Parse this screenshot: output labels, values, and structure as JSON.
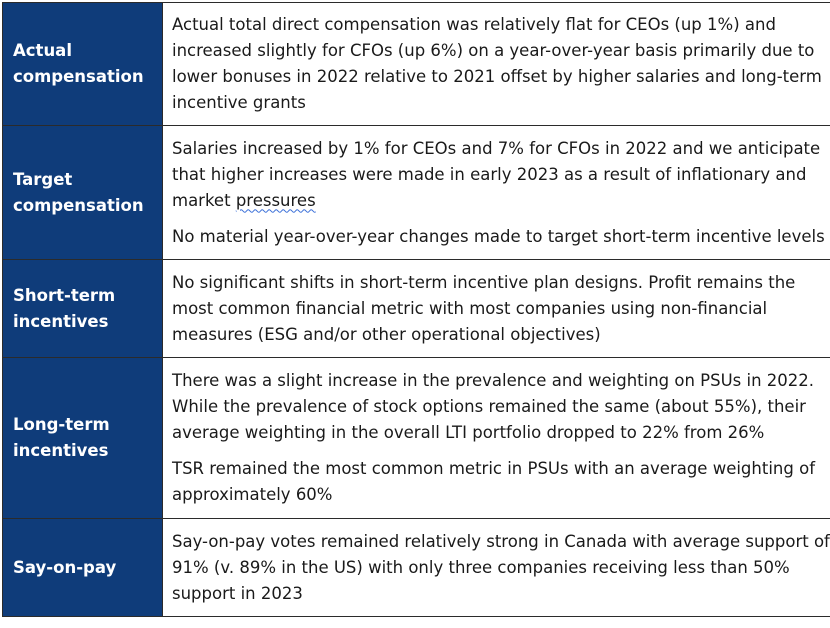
{
  "rows": [
    {
      "label": "Actual compensation",
      "paragraphs": [
        "Actual total direct compensation was relatively flat for CEOs (up 1%) and increased slightly for CFOs (up 6%) on a year-over-year basis primarily due to lower bonuses in 2022 relative to 2021 offset by higher salaries and long-term incentive grants"
      ]
    },
    {
      "label": "Target compensation",
      "paragraphs": [
        "Salaries increased by 1% for CEOs and 7% for CFOs in 2022 and we anticipate that higher increases were made in early 2023 as a result of inflationary and market",
        "No material year-over-year changes made to target short-term incentive levels"
      ],
      "flagged_word": "pressures"
    },
    {
      "label": "Short-term incentives",
      "paragraphs": [
        "No significant shifts in short-term incentive plan designs. Profit remains the most common financial metric with most companies using non-financial measures (ESG and/or other operational objectives)"
      ]
    },
    {
      "label": "Long-term incentives",
      "paragraphs": [
        "There was a slight increase in the prevalence and weighting on PSUs in 2022. While the prevalence of stock options remained the same (about 55%), their average weighting in the overall LTI portfolio dropped to 22% from 26%",
        "TSR remained the most common metric in PSUs with an average weighting of approximately 60%"
      ]
    },
    {
      "label": "Say-on-pay",
      "paragraphs": [
        "Say-on-pay votes remained relatively strong in Canada with average support of 91% (v. 89% in the US) with only three companies receiving less than 50% support in 2023"
      ]
    }
  ],
  "colors": {
    "label_background": "#0f3c7a",
    "label_text": "#ffffff",
    "body_text": "#1a1a1a",
    "border": "#2b2b2b",
    "spellcheck_underline": "#3a6fd8"
  }
}
